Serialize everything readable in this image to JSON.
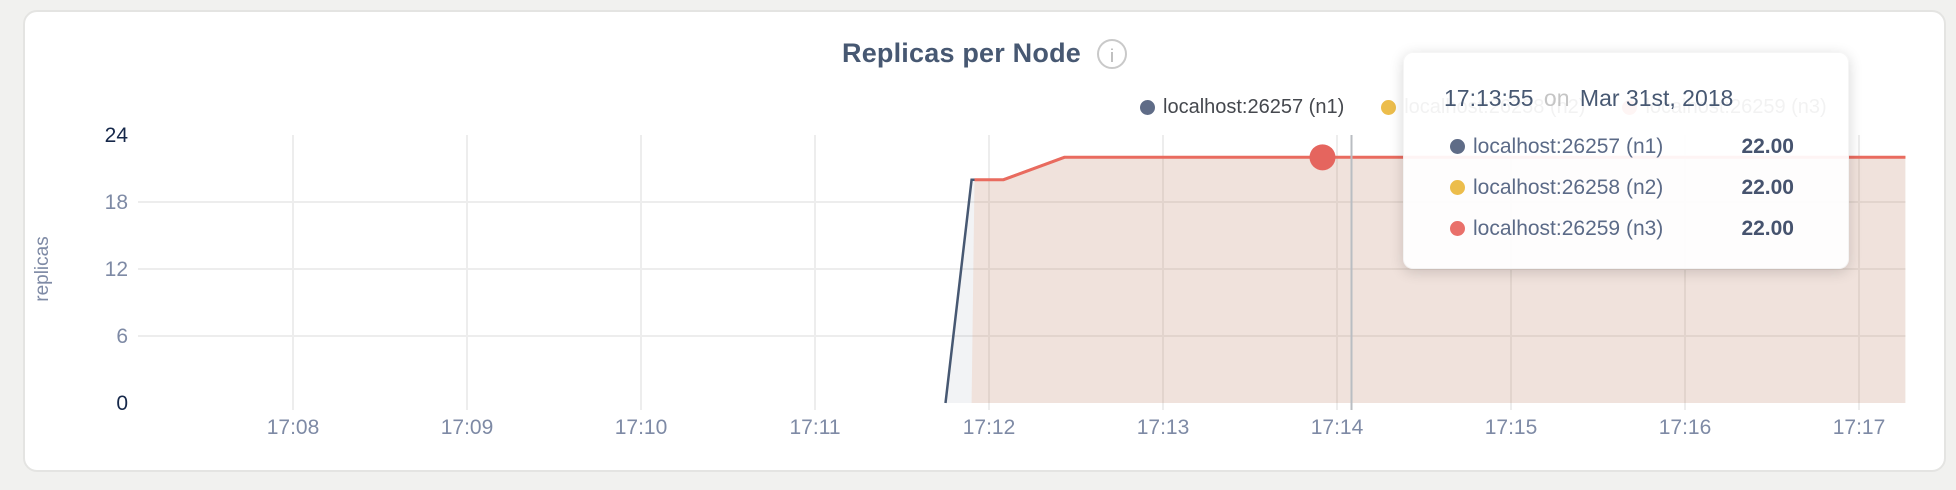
{
  "header": {
    "info_glyph": "i"
  },
  "chart_data": {
    "type": "area",
    "title": "Replicas per Node",
    "xlabel": "",
    "ylabel": "replicas",
    "x_ticks": [
      "17:08",
      "17:09",
      "17:10",
      "17:11",
      "17:12",
      "17:13",
      "17:14",
      "17:15",
      "17:16",
      "17:17"
    ],
    "y_ticks": [
      24,
      18,
      12,
      6,
      0
    ],
    "ylim": [
      0,
      24
    ],
    "x_range": [
      "17:07:07",
      "17:17:16"
    ],
    "grid": true,
    "legend_position": "top-right",
    "series": [
      {
        "id": "n1",
        "label": "localhost:26257 (n1)",
        "color": "#475872",
        "dot_color": "#5f6c87",
        "fill_opacity": 0.07,
        "line_width": 2.5,
        "line_start": 0,
        "points": [
          [
            "17:11:45",
            0
          ],
          [
            "17:11:54",
            20
          ],
          [
            "17:12:05",
            20
          ],
          [
            "17:12:26",
            22
          ],
          [
            "17:17:16",
            22
          ]
        ]
      },
      {
        "id": "n2",
        "label": "localhost:26258 (n2)",
        "color": "#ecbd4b",
        "dot_color": "#ecbd4b",
        "fill_opacity": 0.07,
        "line_width": 2.5,
        "line_start": 1,
        "points": [
          [
            "17:11:54",
            0
          ],
          [
            "17:11:55",
            20
          ],
          [
            "17:12:05",
            20
          ],
          [
            "17:12:26",
            22
          ],
          [
            "17:17:16",
            22
          ]
        ]
      },
      {
        "id": "n3",
        "label": "localhost:26259 (n3)",
        "color": "#e96b5f",
        "dot_color": "#e9706a",
        "fill_opacity": 0.09,
        "line_width": 3,
        "line_start": 1,
        "points": [
          [
            "17:11:54",
            0
          ],
          [
            "17:11:55",
            20
          ],
          [
            "17:12:05",
            20
          ],
          [
            "17:12:26",
            22
          ],
          [
            "17:17:16",
            22
          ]
        ]
      }
    ],
    "highlight": {
      "series": "n3",
      "time": "17:13:55",
      "value": 22,
      "color": "#e5655e"
    },
    "crosshair_time": "17:14:05",
    "axis_colors": {
      "tick_label": "#7e8aa5",
      "tick_label_end": "#16284a",
      "gridline": "#ededed",
      "crosshair": "#b9bdc2"
    }
  },
  "tooltip": {
    "time": "17:13:55",
    "connector": "on",
    "date": "Mar 31st, 2018",
    "rows": [
      {
        "label": "localhost:26257 (n1)",
        "value": "22.00"
      },
      {
        "label": "localhost:26258 (n2)",
        "value": "22.00"
      },
      {
        "label": "localhost:26259 (n3)",
        "value": "22.00"
      }
    ]
  }
}
